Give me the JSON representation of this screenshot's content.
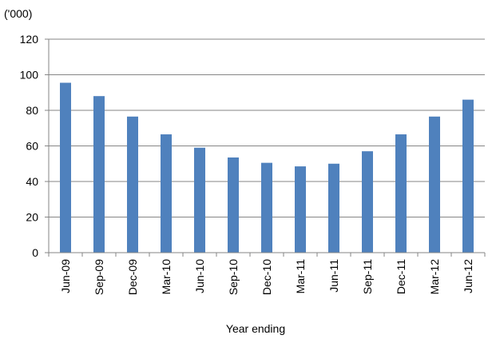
{
  "chart_data": {
    "type": "bar",
    "unit_label": "('000)",
    "xlabel": "Year ending",
    "ylabel": "",
    "ylim": [
      0,
      120
    ],
    "yticks": [
      0,
      20,
      40,
      60,
      80,
      100,
      120
    ],
    "grid": true,
    "categories": [
      "Jun-09",
      "Sep-09",
      "Dec-09",
      "Mar-10",
      "Jun-10",
      "Sep-10",
      "Dec-10",
      "Mar-11",
      "Jun-11",
      "Sep-11",
      "Dec-11",
      "Mar-12",
      "Jun-12"
    ],
    "values": [
      95.5,
      88,
      76.5,
      66.5,
      59,
      53.5,
      50.5,
      48.5,
      50,
      57,
      66.5,
      76.5,
      86
    ],
    "bar_color": "#4F81BD",
    "grid_color": "#868686"
  }
}
